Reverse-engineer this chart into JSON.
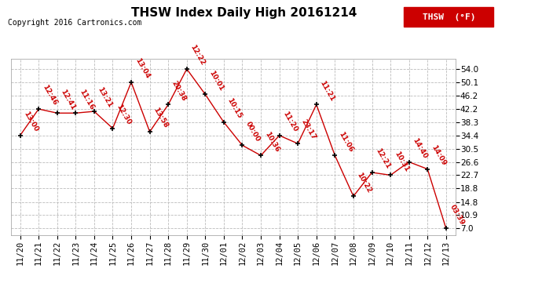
{
  "title": "THSW Index Daily High 20161214",
  "copyright": "Copyright 2016 Cartronics.com",
  "legend_label": "THSW  (°F)",
  "legend_bg": "#cc0000",
  "background_color": "#ffffff",
  "grid_color": "#bbbbbb",
  "line_color": "#cc0000",
  "marker_color": "#000000",
  "label_color": "#cc0000",
  "dates": [
    "11/20",
    "11/21",
    "11/22",
    "11/23",
    "11/24",
    "11/25",
    "11/26",
    "11/27",
    "11/28",
    "11/29",
    "11/30",
    "12/01",
    "12/02",
    "12/03",
    "12/04",
    "12/05",
    "12/06",
    "12/07",
    "12/08",
    "12/09",
    "12/10",
    "12/11",
    "12/12",
    "12/13"
  ],
  "values": [
    34.4,
    42.2,
    41.0,
    41.0,
    41.5,
    36.5,
    50.1,
    35.5,
    43.5,
    54.0,
    46.5,
    38.3,
    31.5,
    28.5,
    34.4,
    32.0,
    43.5,
    28.5,
    16.5,
    23.5,
    22.7,
    26.6,
    24.5,
    7.0
  ],
  "times": [
    "13:00",
    "12:46",
    "12:41",
    "11:16",
    "13:21",
    "12:30",
    "13:04",
    "13:58",
    "20:38",
    "12:22",
    "10:01",
    "10:15",
    "00:00",
    "10:36",
    "11:20",
    "23:17",
    "11:21",
    "11:06",
    "10:22",
    "12:21",
    "10:31",
    "14:40",
    "14:09",
    "03:39"
  ],
  "ytick_values": [
    7.0,
    10.9,
    14.8,
    18.8,
    22.7,
    26.6,
    30.5,
    34.4,
    38.3,
    42.2,
    46.2,
    50.1,
    54.0
  ],
  "ytick_labels": [
    "7.0",
    "10.9",
    "14.8",
    "18.8",
    "22.7",
    "26.6",
    "30.5",
    "34.4",
    "38.3",
    "42.2",
    "46.2",
    "50.1",
    "54.0"
  ],
  "ylim": [
    5.0,
    57.0
  ],
  "title_fontsize": 11,
  "copyright_fontsize": 7,
  "label_fontsize": 6.5,
  "tick_fontsize": 7.5,
  "label_rotation": -60
}
